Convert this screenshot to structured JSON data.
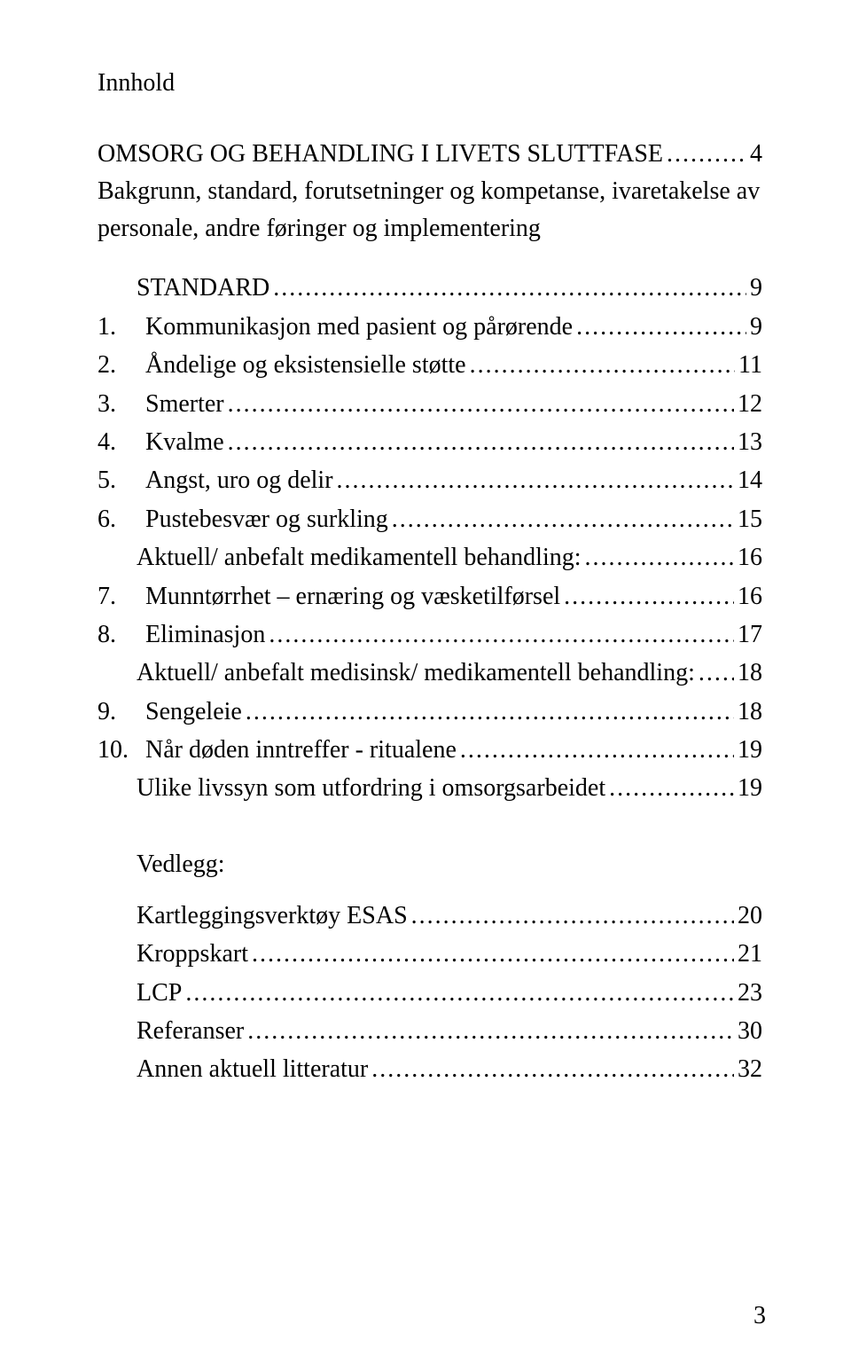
{
  "title": "Innhold",
  "main_section": {
    "heading_line1": "OMSORG OG BEHANDLING I LIVETS SLUTTFASE",
    "heading_page": "4",
    "heading_line2": "Bakgrunn, standard, forutsetninger og kompetanse, ivaretakelse av personale, andre føringer og implementering"
  },
  "toc_indent1": [
    {
      "label": "STANDARD",
      "page": "9"
    }
  ],
  "toc_numbered": [
    {
      "num": "1.",
      "label": "Kommunikasjon med pasient og pårørende",
      "page": "9",
      "sub": null
    },
    {
      "num": "2.",
      "label": "Åndelige og eksistensielle støtte",
      "page": "11",
      "sub": null
    },
    {
      "num": "3.",
      "label": "Smerter",
      "page": "12",
      "sub": null
    },
    {
      "num": "4.",
      "label": "Kvalme",
      "page": "13",
      "sub": null
    },
    {
      "num": "5.",
      "label": "Angst, uro og delir",
      "page": "14",
      "sub": null
    },
    {
      "num": "6.",
      "label": "Pustebesvær og surkling",
      "page": "15",
      "sub": {
        "label": "Aktuell/ anbefalt medikamentell behandling:",
        "page": "16"
      }
    },
    {
      "num": "7.",
      "label": "Munntørrhet – ernæring og væsketilførsel",
      "page": "16",
      "sub": null
    },
    {
      "num": "8.",
      "label": "Eliminasjon",
      "page": "17",
      "sub": {
        "label": "Aktuell/ anbefalt medisinsk/ medikamentell behandling:",
        "page": "18"
      }
    },
    {
      "num": "9.",
      "label": "Sengeleie",
      "page": "18",
      "sub": null
    },
    {
      "num": "10.",
      "label": "Når døden inntreffer - ritualene",
      "page": "19",
      "sub": {
        "label": "Ulike livssyn som utfordring i omsorgsarbeidet",
        "page": "19"
      }
    }
  ],
  "vedlegg": {
    "title": "Vedlegg:",
    "items": [
      {
        "label": "Kartleggingsverktøy ESAS",
        "page": "20"
      },
      {
        "label": "Kroppskart",
        "page": "21"
      },
      {
        "label": "LCP",
        "page": "23"
      },
      {
        "label": "Referanser",
        "page": "30"
      },
      {
        "label": "Annen aktuell litteratur",
        "page": "32"
      }
    ]
  },
  "page_number": "3"
}
